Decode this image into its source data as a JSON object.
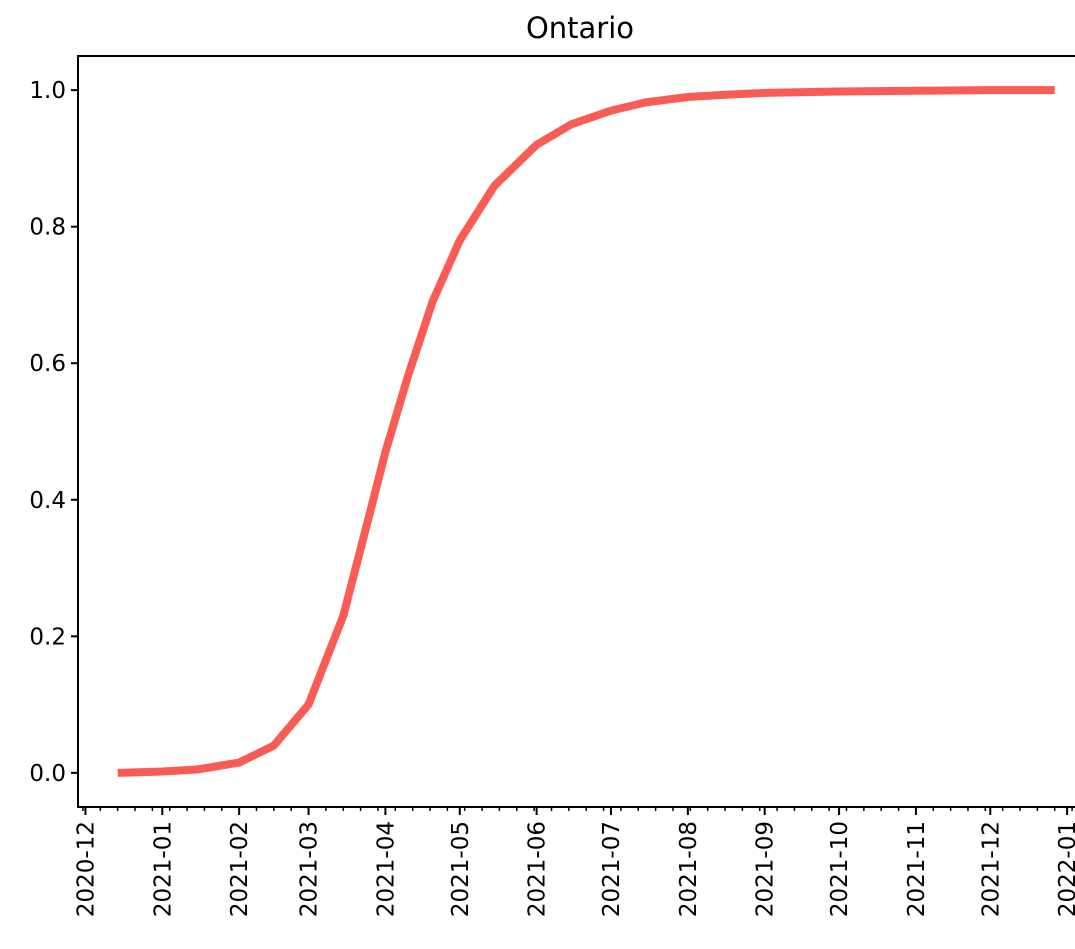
{
  "chart_data": {
    "type": "line",
    "title": "Ontario",
    "xlabel": "",
    "ylabel": "",
    "x_type": "date",
    "xlim": [
      "2020-11-28",
      "2022-01-07"
    ],
    "ylim": [
      -0.05,
      1.05
    ],
    "grid": false,
    "legend": "none",
    "line_color": "#f95b55",
    "x_ticks": [
      "2020-12",
      "2021-01",
      "2021-02",
      "2021-03",
      "2021-04",
      "2021-05",
      "2021-06",
      "2021-07",
      "2021-08",
      "2021-09",
      "2021-10",
      "2021-11",
      "2021-12",
      "2022-01"
    ],
    "y_ticks": [
      "0.0",
      "0.2",
      "0.4",
      "0.6",
      "0.8",
      "1.0"
    ],
    "series": [
      {
        "x": [
          "2020-12-14",
          "2021-01-01",
          "2021-01-15",
          "2021-02-01",
          "2021-02-15",
          "2021-03-01",
          "2021-03-15",
          "2021-03-25",
          "2021-04-01",
          "2021-04-10",
          "2021-04-20",
          "2021-05-01",
          "2021-05-15",
          "2021-06-01",
          "2021-06-15",
          "2021-07-01",
          "2021-07-15",
          "2021-08-01",
          "2021-08-15",
          "2021-09-01",
          "2021-10-01",
          "2021-11-01",
          "2021-12-01",
          "2021-12-27"
        ],
        "y": [
          0.0,
          0.002,
          0.005,
          0.015,
          0.04,
          0.1,
          0.23,
          0.37,
          0.47,
          0.58,
          0.69,
          0.78,
          0.86,
          0.92,
          0.95,
          0.97,
          0.982,
          0.99,
          0.993,
          0.996,
          0.998,
          0.999,
          1.0,
          1.0
        ]
      }
    ]
  }
}
